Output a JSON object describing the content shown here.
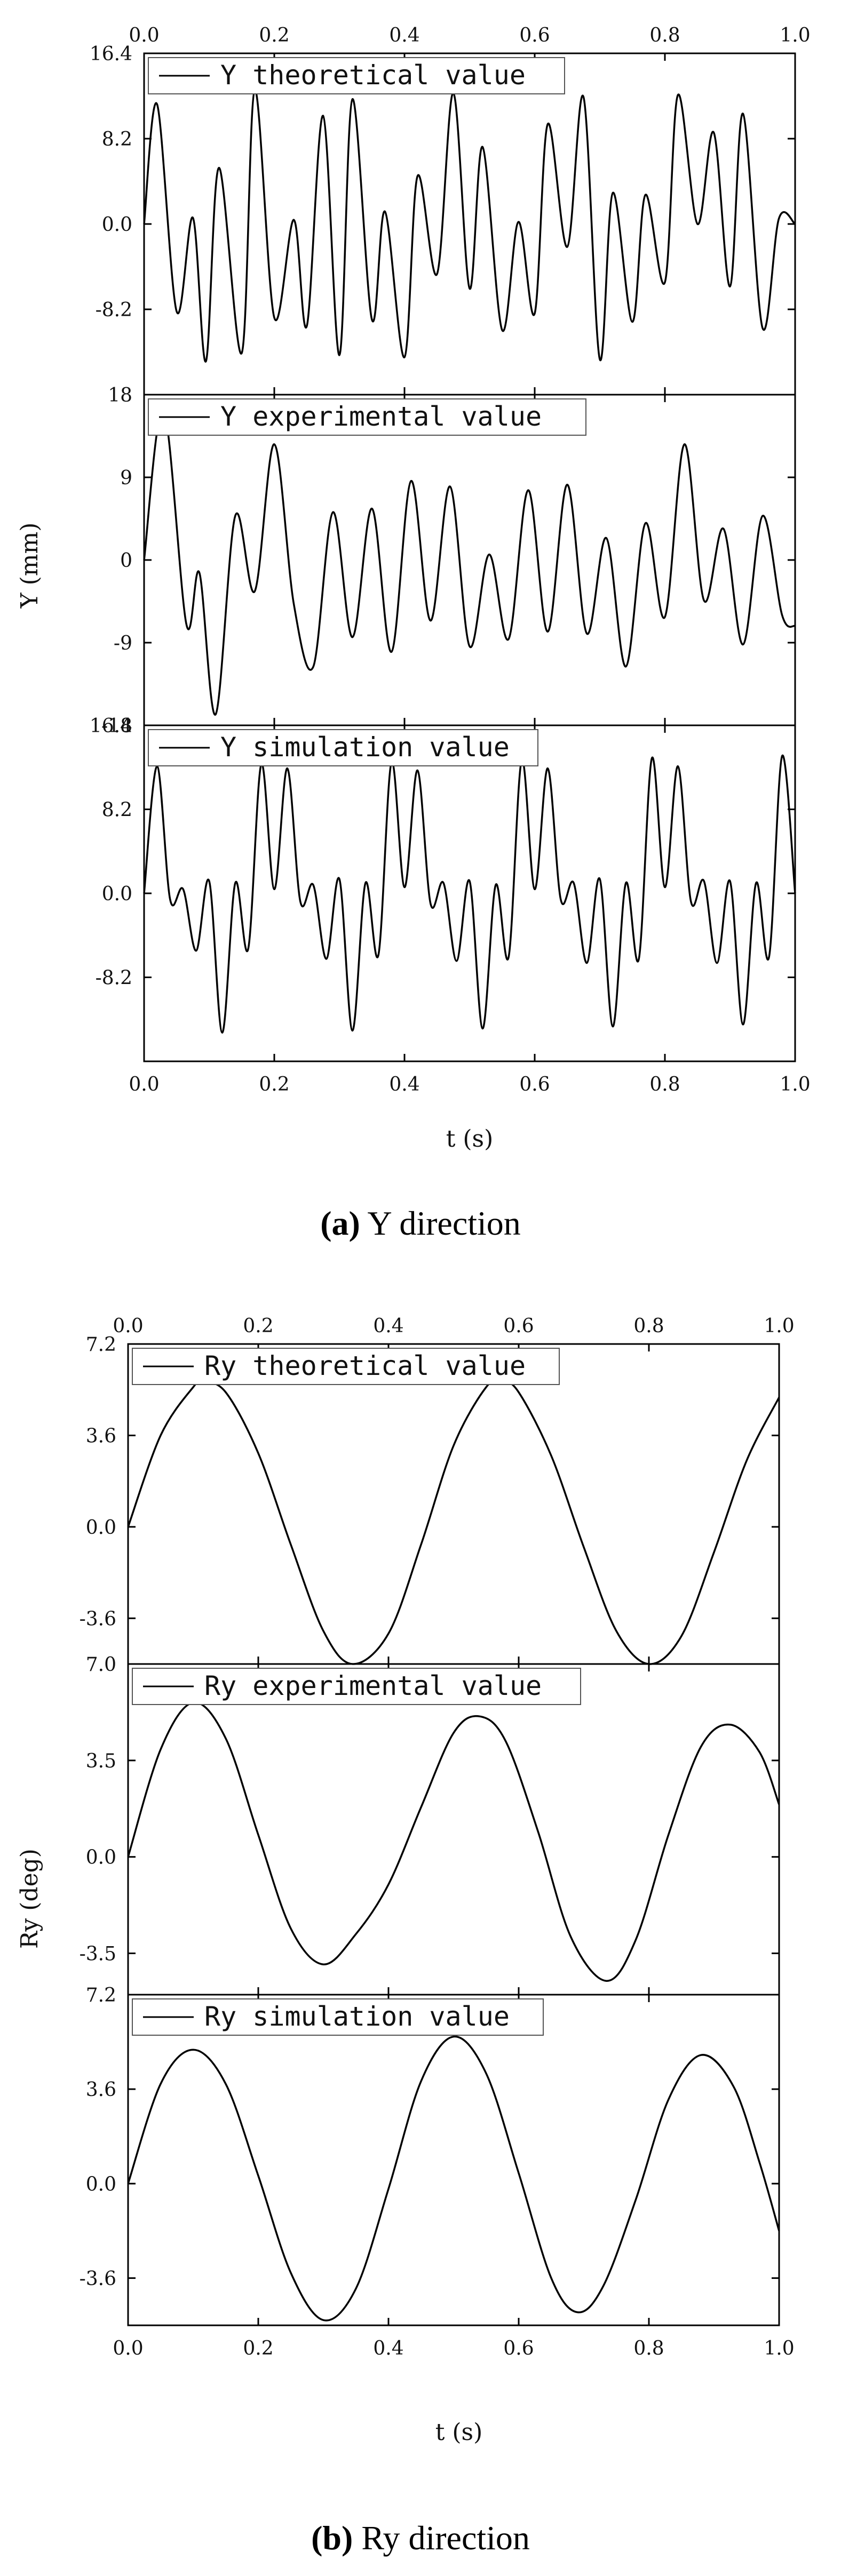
{
  "figure_a": {
    "caption_letter": "(a)",
    "caption_rest": " Y direction",
    "ylabel": "Y (mm)",
    "xlabel": "t (s)"
  },
  "figure_b": {
    "caption_letter": "(b)",
    "caption_rest": " Ry direction",
    "ylabel": "Ry (deg)",
    "xlabel": "t (s)"
  },
  "chart_data": [
    {
      "type": "line",
      "legend": "Y theoretical value",
      "xlim": [
        0,
        1
      ],
      "ylim": [
        -16.4,
        16.4
      ],
      "xticks": [
        "0.0",
        "0.2",
        "0.4",
        "0.6",
        "0.8",
        "1.0"
      ],
      "yticks": [
        16.4,
        8.2,
        0.0,
        -8.2
      ],
      "ytick_labels": [
        "16.4",
        "8.2",
        "0.0",
        "-8.2"
      ],
      "x": [
        0,
        0.02,
        0.05,
        0.075,
        0.095,
        0.115,
        0.15,
        0.17,
        0.2,
        0.23,
        0.25,
        0.275,
        0.3,
        0.32,
        0.35,
        0.37,
        0.4,
        0.42,
        0.45,
        0.475,
        0.5,
        0.52,
        0.55,
        0.575,
        0.6,
        0.62,
        0.65,
        0.675,
        0.7,
        0.72,
        0.75,
        0.77,
        0.8,
        0.82,
        0.85,
        0.875,
        0.9,
        0.92,
        0.95,
        0.975,
        1.0
      ],
      "y": [
        0,
        11.5,
        -8.4,
        0.6,
        -13.2,
        5.4,
        -12.4,
        12.9,
        -9.0,
        0.4,
        -9.8,
        10.4,
        -12.6,
        12.0,
        -9.2,
        1.2,
        -12.8,
        4.6,
        -4.8,
        12.6,
        -6.2,
        7.4,
        -10.2,
        0.2,
        -8.6,
        9.6,
        -2.2,
        12.2,
        -13.0,
        3.0,
        -9.4,
        2.8,
        -5.6,
        12.4,
        0.0,
        8.8,
        -6.0,
        10.6,
        -10.0,
        0.5,
        0
      ]
    },
    {
      "type": "line",
      "legend": "Y experimental value",
      "xlim": [
        0,
        1
      ],
      "ylim": [
        -18,
        18
      ],
      "xticks": [
        "0.0",
        "0.2",
        "0.4",
        "0.6",
        "0.8",
        "1.0"
      ],
      "yticks": [
        18,
        9,
        0,
        -9,
        -18
      ],
      "ytick_labels": [
        "18",
        "9",
        "0",
        "-9",
        "-18"
      ],
      "x": [
        0,
        0.03,
        0.065,
        0.085,
        0.11,
        0.14,
        0.17,
        0.2,
        0.23,
        0.26,
        0.29,
        0.32,
        0.35,
        0.38,
        0.41,
        0.44,
        0.47,
        0.5,
        0.53,
        0.56,
        0.59,
        0.62,
        0.65,
        0.68,
        0.71,
        0.74,
        0.77,
        0.8,
        0.83,
        0.86,
        0.89,
        0.92,
        0.95,
        0.98,
        1.0
      ],
      "y": [
        0,
        16.4,
        -7.0,
        -1.4,
        -16.8,
        4.8,
        -3.4,
        12.6,
        -4.8,
        -11.6,
        5.2,
        -8.4,
        5.6,
        -10.0,
        8.6,
        -6.6,
        8.0,
        -9.4,
        0.6,
        -8.6,
        7.6,
        -7.8,
        8.2,
        -8.0,
        2.4,
        -11.6,
        4.0,
        -6.2,
        12.6,
        -4.4,
        3.4,
        -9.2,
        4.8,
        -6.0,
        -7.2
      ]
    },
    {
      "type": "line",
      "legend": "Y simulation value",
      "xlim": [
        0,
        1
      ],
      "ylim": [
        -16.4,
        16.4
      ],
      "xticks": [
        "0.0",
        "0.2",
        "0.4",
        "0.6",
        "0.8",
        "1.0"
      ],
      "yticks": [
        16.4,
        8.2,
        0.0,
        -8.2
      ],
      "ytick_labels": [
        "16.4",
        "8.2",
        "0.0",
        "-8.2"
      ],
      "x": [
        0,
        0.02,
        0.04,
        0.06,
        0.08,
        0.1,
        0.12,
        0.14,
        0.16,
        0.18,
        0.2,
        0.22,
        0.24,
        0.26,
        0.28,
        0.3,
        0.32,
        0.34,
        0.36,
        0.38,
        0.4,
        0.42,
        0.44,
        0.46,
        0.48,
        0.5,
        0.52,
        0.54,
        0.56,
        0.58,
        0.6,
        0.62,
        0.64,
        0.66,
        0.68,
        0.7,
        0.72,
        0.74,
        0.76,
        0.78,
        0.8,
        0.82,
        0.84,
        0.86,
        0.88,
        0.9,
        0.92,
        0.94,
        0.96,
        0.98,
        1.0
      ],
      "y": [
        0,
        12.4,
        -0.6,
        0.4,
        -5.6,
        1.2,
        -13.6,
        1.0,
        -5.4,
        12.6,
        0.4,
        12.2,
        -0.8,
        0.8,
        -6.4,
        1.4,
        -13.4,
        1.0,
        -6.0,
        12.8,
        0.6,
        12.0,
        -1.0,
        1.0,
        -6.6,
        1.2,
        -13.2,
        0.8,
        -6.2,
        13.0,
        0.4,
        12.2,
        -0.6,
        1.0,
        -6.8,
        1.4,
        -13.0,
        1.0,
        -6.4,
        13.2,
        0.6,
        12.4,
        -0.8,
        1.2,
        -6.8,
        1.2,
        -12.8,
        1.0,
        -6.2,
        13.4,
        0
      ]
    },
    {
      "type": "line",
      "legend": "Ry theoretical value",
      "xlim": [
        0,
        1
      ],
      "ylim": [
        -5.4,
        7.2
      ],
      "xticks": [
        "0.0",
        "0.2",
        "0.4",
        "0.6",
        "0.8",
        "1.0"
      ],
      "yticks": [
        7.2,
        3.6,
        0.0,
        -3.6
      ],
      "ytick_labels": [
        "7.2",
        "3.6",
        "0.0",
        "-3.6"
      ],
      "x": [
        0,
        0.05,
        0.1,
        0.115,
        0.15,
        0.2,
        0.25,
        0.3,
        0.345,
        0.4,
        0.45,
        0.5,
        0.55,
        0.575,
        0.6,
        0.65,
        0.7,
        0.75,
        0.8,
        0.85,
        0.9,
        0.95,
        1.0
      ],
      "y": [
        0,
        3.6,
        5.5,
        5.7,
        5.3,
        2.9,
        -0.7,
        -4.1,
        -5.4,
        -4.2,
        -0.7,
        3.2,
        5.5,
        5.7,
        5.3,
        2.8,
        -0.8,
        -4.1,
        -5.4,
        -4.3,
        -1.0,
        2.6,
        5.1
      ]
    },
    {
      "type": "line",
      "legend": "Ry experimental value",
      "xlim": [
        0,
        1
      ],
      "ylim": [
        -5.0,
        7.0
      ],
      "xticks": [
        "0.0",
        "0.2",
        "0.4",
        "0.6",
        "0.8",
        "1.0"
      ],
      "yticks": [
        7.0,
        3.5,
        0.0,
        -3.5
      ],
      "ytick_labels": [
        "7.0",
        "3.5",
        "0.0",
        "-3.5"
      ],
      "x": [
        0,
        0.05,
        0.1,
        0.15,
        0.2,
        0.25,
        0.3,
        0.35,
        0.4,
        0.45,
        0.5,
        0.54,
        0.58,
        0.63,
        0.68,
        0.735,
        0.78,
        0.83,
        0.88,
        0.925,
        0.97,
        1.0
      ],
      "y": [
        0,
        3.9,
        5.6,
        4.3,
        0.8,
        -2.6,
        -3.9,
        -2.8,
        -1.0,
        1.8,
        4.5,
        5.1,
        4.2,
        0.9,
        -2.9,
        -4.5,
        -3.0,
        0.8,
        4.0,
        4.8,
        3.8,
        1.9
      ]
    },
    {
      "type": "line",
      "legend": "Ry simulation value",
      "xlim": [
        0,
        1
      ],
      "ylim": [
        -5.4,
        7.2
      ],
      "xticks": [
        "0.0",
        "0.2",
        "0.4",
        "0.6",
        "0.8",
        "1.0"
      ],
      "yticks": [
        7.2,
        3.6,
        0.0,
        -3.6
      ],
      "ytick_labels": [
        "7.2",
        "3.6",
        "0.0",
        "-3.6"
      ],
      "x": [
        0,
        0.05,
        0.1,
        0.15,
        0.2,
        0.25,
        0.3,
        0.35,
        0.4,
        0.45,
        0.5,
        0.55,
        0.6,
        0.65,
        0.69,
        0.73,
        0.78,
        0.83,
        0.88,
        0.93,
        0.97,
        1.0
      ],
      "y": [
        0,
        3.8,
        5.1,
        3.8,
        0.3,
        -3.4,
        -5.2,
        -4.0,
        -0.2,
        3.9,
        5.6,
        4.2,
        0.4,
        -3.6,
        -4.9,
        -3.9,
        -0.6,
        3.2,
        4.9,
        3.7,
        0.8,
        -1.8
      ]
    }
  ]
}
